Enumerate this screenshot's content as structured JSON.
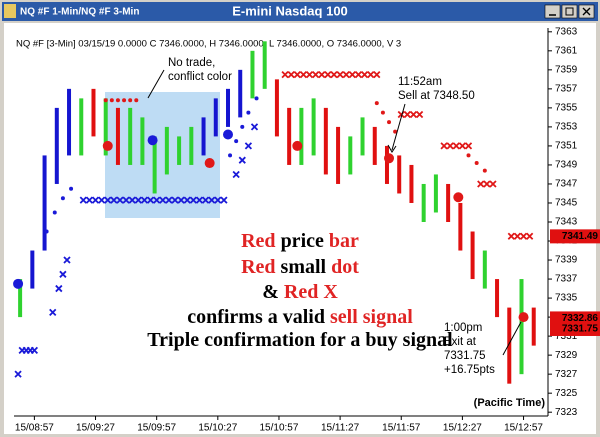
{
  "chart_data": {
    "type": "price-bars",
    "tab": "NQ #F 1-Min/NQ #F 3-Min",
    "title": "E-mini Nasdaq 100",
    "info": "NQ #F [3-Min] 03/15/19  0.0000 C 7346.0000, H 7346.0000, L 7346.0000, O 7346.0000, V 3",
    "xlim": [
      527,
      789
    ],
    "xticks": [
      {
        "value": 537,
        "label": "15/08:57"
      },
      {
        "value": 567,
        "label": "15/09:27"
      },
      {
        "value": 597,
        "label": "15/09:57"
      },
      {
        "value": 627,
        "label": "15/10:27"
      },
      {
        "value": 657,
        "label": "15/10:57"
      },
      {
        "value": 687,
        "label": "15/11:27"
      },
      {
        "value": 717,
        "label": "15/11:57"
      },
      {
        "value": 747,
        "label": "15/12:27"
      },
      {
        "value": 777,
        "label": "15/12:57"
      }
    ],
    "ylim": [
      7322.6,
      7363.4
    ],
    "yticks": [
      7323,
      7325,
      7327,
      7329,
      7331,
      7333,
      7335,
      7337,
      7339,
      7341,
      7343,
      7345,
      7347,
      7349,
      7351,
      7353,
      7355,
      7357,
      7359,
      7361,
      7363
    ],
    "x": [
      530,
      536,
      542,
      548,
      554,
      560,
      566,
      572,
      578,
      584,
      590,
      596,
      602,
      608,
      614,
      620,
      626,
      632,
      638,
      644,
      650,
      656,
      662,
      668,
      674,
      680,
      686,
      692,
      698,
      704,
      710,
      716,
      722,
      728,
      734,
      740,
      746,
      752,
      758,
      764,
      770,
      776,
      782
    ],
    "high": [
      7337,
      7340,
      7350,
      7355,
      7357,
      7356,
      7357,
      7356,
      7355,
      7355,
      7354,
      7352,
      7353,
      7352,
      7353,
      7354,
      7356,
      7357,
      7359,
      7361,
      7362,
      7358,
      7355,
      7355,
      7356,
      7355,
      7353,
      7352,
      7354,
      7353,
      7351,
      7350,
      7349,
      7347,
      7348,
      7347,
      7345,
      7342,
      7340,
      7337,
      7334,
      7337,
      7334
    ],
    "low": [
      7333,
      7336,
      7340,
      7347,
      7350,
      7350,
      7352,
      7350,
      7349,
      7349,
      7349,
      7346,
      7348,
      7349,
      7349,
      7350,
      7352,
      7353,
      7354,
      7356,
      7357,
      7352,
      7349,
      7349,
      7350,
      7348,
      7347,
      7348,
      7350,
      7349,
      7347,
      7346,
      7345,
      7343,
      7344,
      7343,
      7340,
      7337,
      7336,
      7333,
      7326,
      7327,
      7330
    ],
    "colors": [
      "#2fd22f",
      "#1515d0",
      "#1515d0",
      "#1515d0",
      "#1515d0",
      "#2fd22f",
      "#e01010",
      "#2fd22f",
      "#e01010",
      "#2fd22f",
      "#2fd22f",
      "#2fd22f",
      "#2fd22f",
      "#2fd22f",
      "#2fd22f",
      "#1515d0",
      "#1515d0",
      "#1515d0",
      "#1515d0",
      "#2fd22f",
      "#2fd22f",
      "#e01010",
      "#e01010",
      "#2fd22f",
      "#2fd22f",
      "#e01010",
      "#e01010",
      "#2fd22f",
      "#2fd22f",
      "#e01010",
      "#e01010",
      "#e01010",
      "#e01010",
      "#2fd22f",
      "#2fd22f",
      "#e01010",
      "#e01010",
      "#e01010",
      "#2fd22f",
      "#e01010",
      "#e01010",
      "#2fd22f",
      "#e01010"
    ],
    "markers": [
      {
        "shape": "x",
        "color": "#1a1ad8",
        "x": [
          529,
          531,
          533,
          535,
          537,
          546,
          549,
          551,
          553,
          561,
          564,
          567,
          570,
          573,
          576,
          579,
          582,
          585,
          588,
          591,
          594,
          597,
          600,
          603,
          606,
          609,
          612,
          615,
          618,
          621,
          624,
          627,
          630,
          636,
          639,
          642,
          645
        ],
        "values": [
          7327,
          7329.5,
          7329.5,
          7329.5,
          7329.5,
          7333.5,
          7336,
          7337.5,
          7339,
          7345.3,
          7345.3,
          7345.3,
          7345.3,
          7345.3,
          7345.3,
          7345.3,
          7345.3,
          7345.3,
          7345.3,
          7345.3,
          7345.3,
          7345.3,
          7345.3,
          7345.3,
          7345.3,
          7345.3,
          7345.3,
          7345.3,
          7345.3,
          7345.3,
          7345.3,
          7345.3,
          7345.3,
          7348,
          7349.5,
          7351,
          7353
        ]
      },
      {
        "shape": "x",
        "color": "#e01818",
        "x": [
          660,
          663,
          666,
          669,
          672,
          675,
          678,
          681,
          684,
          687,
          690,
          693,
          696,
          699,
          702,
          705,
          717,
          720,
          723,
          726,
          738,
          741,
          744,
          747,
          750,
          756,
          759,
          762,
          771,
          774,
          777,
          780
        ],
        "values": [
          7358.5,
          7358.5,
          7358.5,
          7358.5,
          7358.5,
          7358.5,
          7358.5,
          7358.5,
          7358.5,
          7358.5,
          7358.5,
          7358.5,
          7358.5,
          7358.5,
          7358.5,
          7358.5,
          7354.3,
          7354.3,
          7354.3,
          7354.3,
          7351,
          7351,
          7351,
          7351,
          7351,
          7347,
          7347,
          7347,
          7341.5,
          7341.5,
          7341.5,
          7341.5
        ]
      },
      {
        "shape": "dot",
        "color": "#1a1ad8",
        "x": [
          543,
          547,
          551,
          555,
          633,
          636,
          639,
          642,
          646
        ],
        "values": [
          7342,
          7344,
          7345.5,
          7346.5,
          7350,
          7351.5,
          7353,
          7354.5,
          7356
        ]
      },
      {
        "shape": "dot",
        "color": "#e01818",
        "x": [
          572,
          575,
          578,
          581,
          584,
          587,
          705,
          708,
          711,
          714,
          750,
          754,
          758
        ],
        "values": [
          7355.8,
          7355.8,
          7355.8,
          7355.8,
          7355.8,
          7355.8,
          7355.5,
          7354.5,
          7353.5,
          7352.5,
          7350,
          7349.2,
          7348.4
        ]
      },
      {
        "shape": "big-dot",
        "color": "#1a1ad8",
        "x": [
          529,
          595,
          632
        ],
        "values": [
          7336.5,
          7351.6,
          7352.2
        ]
      },
      {
        "shape": "big-dot",
        "color": "#e01818",
        "x": [
          573,
          623,
          666,
          711,
          745,
          777
        ],
        "values": [
          7351,
          7349.2,
          7351,
          7349.7,
          7345.6,
          7333
        ]
      }
    ],
    "price_tags": [
      7341.49,
      7332.86,
      7331.75
    ],
    "annotations": {
      "no_trade": [
        "No trade,",
        "conflict color"
      ],
      "sell": [
        "11:52am",
        "Sell at 7348.50"
      ],
      "exit": [
        "1:00pm",
        "Exit at",
        "7331.75",
        "+16.75pts"
      ],
      "zone": "(Pacific Time)"
    },
    "caption": [
      [
        {
          "text": "Red",
          "color": "#e02424"
        },
        {
          "text": " price ",
          "color": "#000000"
        },
        {
          "text": "bar",
          "color": "#e02424"
        }
      ],
      [
        {
          "text": "Red",
          "color": "#e02424"
        },
        {
          "text": " small ",
          "color": "#000000"
        },
        {
          "text": "dot",
          "color": "#e02424"
        }
      ],
      [
        {
          "text": "& ",
          "color": "#000000"
        },
        {
          "text": "Red X",
          "color": "#e02424"
        }
      ],
      [
        {
          "text": "confirms a valid ",
          "color": "#000000"
        },
        {
          "text": "sell signal",
          "color": "#e02424"
        }
      ],
      [
        {
          "text": "Triple confirmation for a buy signal",
          "color": "#000000"
        }
      ]
    ]
  }
}
